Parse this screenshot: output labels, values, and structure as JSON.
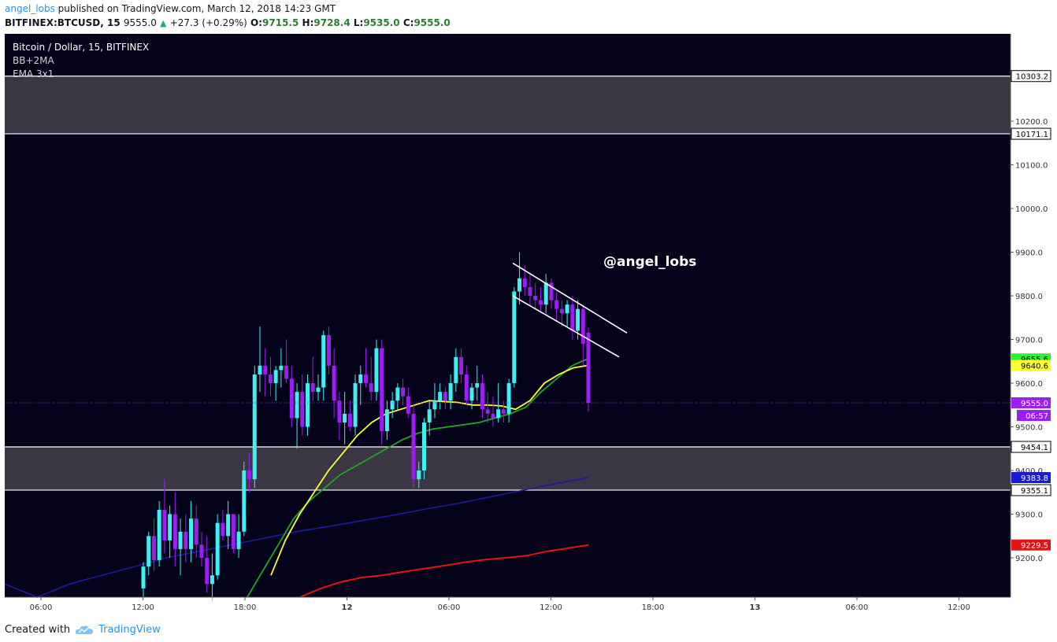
{
  "header": {
    "author": "angel_lobs",
    "published_text": " published on TradingView.com, March 12, 2018 14:23 GMT",
    "symbol": "BITFINEX:BTCUSD, 15",
    "last": "9555.0",
    "change": "+27.3 (+0.29%)",
    "o_label": "O:",
    "o_value": "9715.5",
    "h_label": "H:",
    "h_value": "9728.4",
    "l_label": "L:",
    "l_value": "9535.0",
    "c_label": "C:",
    "c_value": "9555.0"
  },
  "legend": {
    "title": "Bitcoin / Dollar, 15, BITFINEX",
    "indicator1": "BB+2MA",
    "indicator2": "EMA 3x1"
  },
  "watermark": "@angel_lobs",
  "footer": {
    "created_with": "Created with",
    "brand": "TradingView"
  },
  "colors": {
    "background": "#05031a",
    "candle_up": "#3ff0f0",
    "candle_down": "#9b1ff0",
    "zone": "#3b3644",
    "ema_yellow": "#ffff33",
    "ema_green": "#1fa81f",
    "ma_blue": "#1a1aa0",
    "ma_red": "#e01414"
  },
  "chart_data": {
    "type": "candlestick",
    "title": "Bitcoin / Dollar, 15, BITFINEX",
    "ylim": [
      9110,
      10400
    ],
    "y_ticks": [
      9200.0,
      9300.0,
      9400.0,
      9500.0,
      9600.0,
      9700.0,
      9800.0,
      9900.0,
      10000.0,
      10100.0,
      10200.0
    ],
    "x_tick_labels": [
      "06:00",
      "12:00",
      "18:00",
      "12",
      "06:00",
      "12:00",
      "18:00",
      "13",
      "06:00",
      "12:00"
    ],
    "zones": [
      {
        "top": 10303.2,
        "bottom": 10171.1
      },
      {
        "top": 9454.1,
        "bottom": 9355.1
      }
    ],
    "price_labels": [
      {
        "value": 10303.2,
        "text": "10303.2",
        "style": "outline"
      },
      {
        "value": 10171.1,
        "text": "10171.1",
        "style": "outline"
      },
      {
        "value": 9655.6,
        "text": "9655.6",
        "style": "green"
      },
      {
        "value": 9640.6,
        "text": "9640.6",
        "style": "yellow"
      },
      {
        "value": 9555.0,
        "text": "9555.0",
        "style": "purple"
      },
      {
        "value": 9454.1,
        "text": "9454.1",
        "style": "outline"
      },
      {
        "value": 9383.8,
        "text": "9383.8",
        "style": "blue"
      },
      {
        "value": 9355.1,
        "text": "9355.1",
        "style": "outline"
      },
      {
        "value": 9229.5,
        "text": "9229.5",
        "style": "red"
      }
    ],
    "countdown": "06:57",
    "last_price": 9555.0,
    "candles_ohlc": [
      [
        9130,
        9190,
        9110,
        9180
      ],
      [
        9180,
        9260,
        9160,
        9250
      ],
      [
        9250,
        9290,
        9170,
        9195
      ],
      [
        9195,
        9330,
        9180,
        9310
      ],
      [
        9310,
        9380,
        9210,
        9240
      ],
      [
        9240,
        9320,
        9200,
        9300
      ],
      [
        9300,
        9350,
        9180,
        9220
      ],
      [
        9220,
        9290,
        9160,
        9260
      ],
      [
        9260,
        9300,
        9190,
        9220
      ],
      [
        9220,
        9330,
        9190,
        9290
      ],
      [
        9290,
        9320,
        9200,
        9230
      ],
      [
        9230,
        9260,
        9180,
        9200
      ],
      [
        9200,
        9250,
        9120,
        9140
      ],
      [
        9140,
        9210,
        9100,
        9160
      ],
      [
        9160,
        9300,
        9150,
        9280
      ],
      [
        9280,
        9310,
        9240,
        9250
      ],
      [
        9250,
        9330,
        9220,
        9300
      ],
      [
        9300,
        9290,
        9210,
        9220
      ],
      [
        9220,
        9300,
        9200,
        9260
      ],
      [
        9260,
        9420,
        9250,
        9400
      ],
      [
        9400,
        9440,
        9350,
        9380
      ],
      [
        9380,
        9640,
        9360,
        9620
      ],
      [
        9620,
        9730,
        9580,
        9640
      ],
      [
        9640,
        9680,
        9570,
        9620
      ],
      [
        9620,
        9660,
        9570,
        9600
      ],
      [
        9600,
        9640,
        9560,
        9630
      ],
      [
        9630,
        9680,
        9590,
        9640
      ],
      [
        9640,
        9700,
        9600,
        9610
      ],
      [
        9610,
        9640,
        9500,
        9520
      ],
      [
        9520,
        9600,
        9450,
        9580
      ],
      [
        9580,
        9620,
        9480,
        9500
      ],
      [
        9500,
        9620,
        9480,
        9600
      ],
      [
        9600,
        9660,
        9560,
        9580
      ],
      [
        9580,
        9620,
        9560,
        9590
      ],
      [
        9590,
        9720,
        9560,
        9710
      ],
      [
        9710,
        9730,
        9620,
        9640
      ],
      [
        9640,
        9680,
        9520,
        9560
      ],
      [
        9560,
        9580,
        9470,
        9510
      ],
      [
        9510,
        9580,
        9460,
        9530
      ],
      [
        9530,
        9560,
        9490,
        9500
      ],
      [
        9500,
        9620,
        9480,
        9600
      ],
      [
        9600,
        9640,
        9550,
        9620
      ],
      [
        9620,
        9680,
        9590,
        9600
      ],
      [
        9600,
        9660,
        9560,
        9580
      ],
      [
        9580,
        9700,
        9560,
        9680
      ],
      [
        9680,
        9700,
        9460,
        9490
      ],
      [
        9490,
        9560,
        9470,
        9540
      ],
      [
        9540,
        9580,
        9520,
        9560
      ],
      [
        9560,
        9600,
        9540,
        9590
      ],
      [
        9590,
        9610,
        9550,
        9570
      ],
      [
        9570,
        9590,
        9520,
        9530
      ],
      [
        9530,
        9550,
        9360,
        9380
      ],
      [
        9380,
        9420,
        9360,
        9400
      ],
      [
        9400,
        9520,
        9380,
        9510
      ],
      [
        9510,
        9560,
        9480,
        9540
      ],
      [
        9540,
        9600,
        9520,
        9560
      ],
      [
        9560,
        9600,
        9540,
        9580
      ],
      [
        9580,
        9590,
        9540,
        9560
      ],
      [
        9560,
        9620,
        9540,
        9600
      ],
      [
        9600,
        9680,
        9580,
        9660
      ],
      [
        9660,
        9680,
        9600,
        9620
      ],
      [
        9620,
        9640,
        9550,
        9560
      ],
      [
        9560,
        9600,
        9540,
        9590
      ],
      [
        9590,
        9640,
        9560,
        9600
      ],
      [
        9600,
        9620,
        9520,
        9540
      ],
      [
        9540,
        9580,
        9510,
        9530
      ],
      [
        9530,
        9570,
        9500,
        9520
      ],
      [
        9520,
        9600,
        9510,
        9540
      ],
      [
        9540,
        9560,
        9510,
        9530
      ],
      [
        9530,
        9610,
        9510,
        9600
      ],
      [
        9600,
        9820,
        9590,
        9810
      ],
      [
        9810,
        9900,
        9780,
        9840
      ],
      [
        9840,
        9870,
        9800,
        9820
      ],
      [
        9820,
        9850,
        9780,
        9800
      ],
      [
        9800,
        9830,
        9770,
        9790
      ],
      [
        9790,
        9820,
        9760,
        9780
      ],
      [
        9780,
        9850,
        9760,
        9830
      ],
      [
        9830,
        9840,
        9770,
        9790
      ],
      [
        9790,
        9810,
        9740,
        9770
      ],
      [
        9770,
        9790,
        9730,
        9760
      ],
      [
        9760,
        9790,
        9730,
        9780
      ],
      [
        9780,
        9800,
        9700,
        9720
      ],
      [
        9720,
        9790,
        9700,
        9770
      ],
      [
        9770,
        9780,
        9640,
        9690
      ],
      [
        9715.5,
        9728.4,
        9535.0,
        9555.0
      ]
    ],
    "ema_yellow": [
      9160,
      9240,
      9300,
      9350,
      9400,
      9440,
      9480,
      9510,
      9530,
      9540,
      9550,
      9560,
      9558,
      9556,
      9550,
      9550,
      9548,
      9540,
      9560,
      9600,
      9620,
      9635,
      9640.6
    ],
    "ema_green": [
      9110,
      9170,
      9230,
      9290,
      9330,
      9360,
      9390,
      9410,
      9430,
      9450,
      9470,
      9485,
      9495,
      9500,
      9505,
      9510,
      9520,
      9530,
      9545,
      9580,
      9610,
      9640,
      9655.6
    ],
    "ma_blue": [
      9140,
      9110,
      9140,
      9160,
      9180,
      9200,
      9215,
      9230,
      9245,
      9260,
      9272,
      9285,
      9298,
      9312,
      9325,
      9340,
      9355,
      9370,
      9383.8
    ],
    "ma_red": [
      9110,
      9130,
      9145,
      9155,
      9160,
      9168,
      9175,
      9182,
      9190,
      9196,
      9200,
      9205,
      9215,
      9222,
      9229.5
    ],
    "channel_lines": [
      {
        "from": [
          9875,
          0
        ],
        "to": [
          9715,
          1
        ]
      },
      {
        "from": [
          9800,
          0
        ],
        "to": [
          9660,
          1
        ]
      }
    ]
  }
}
